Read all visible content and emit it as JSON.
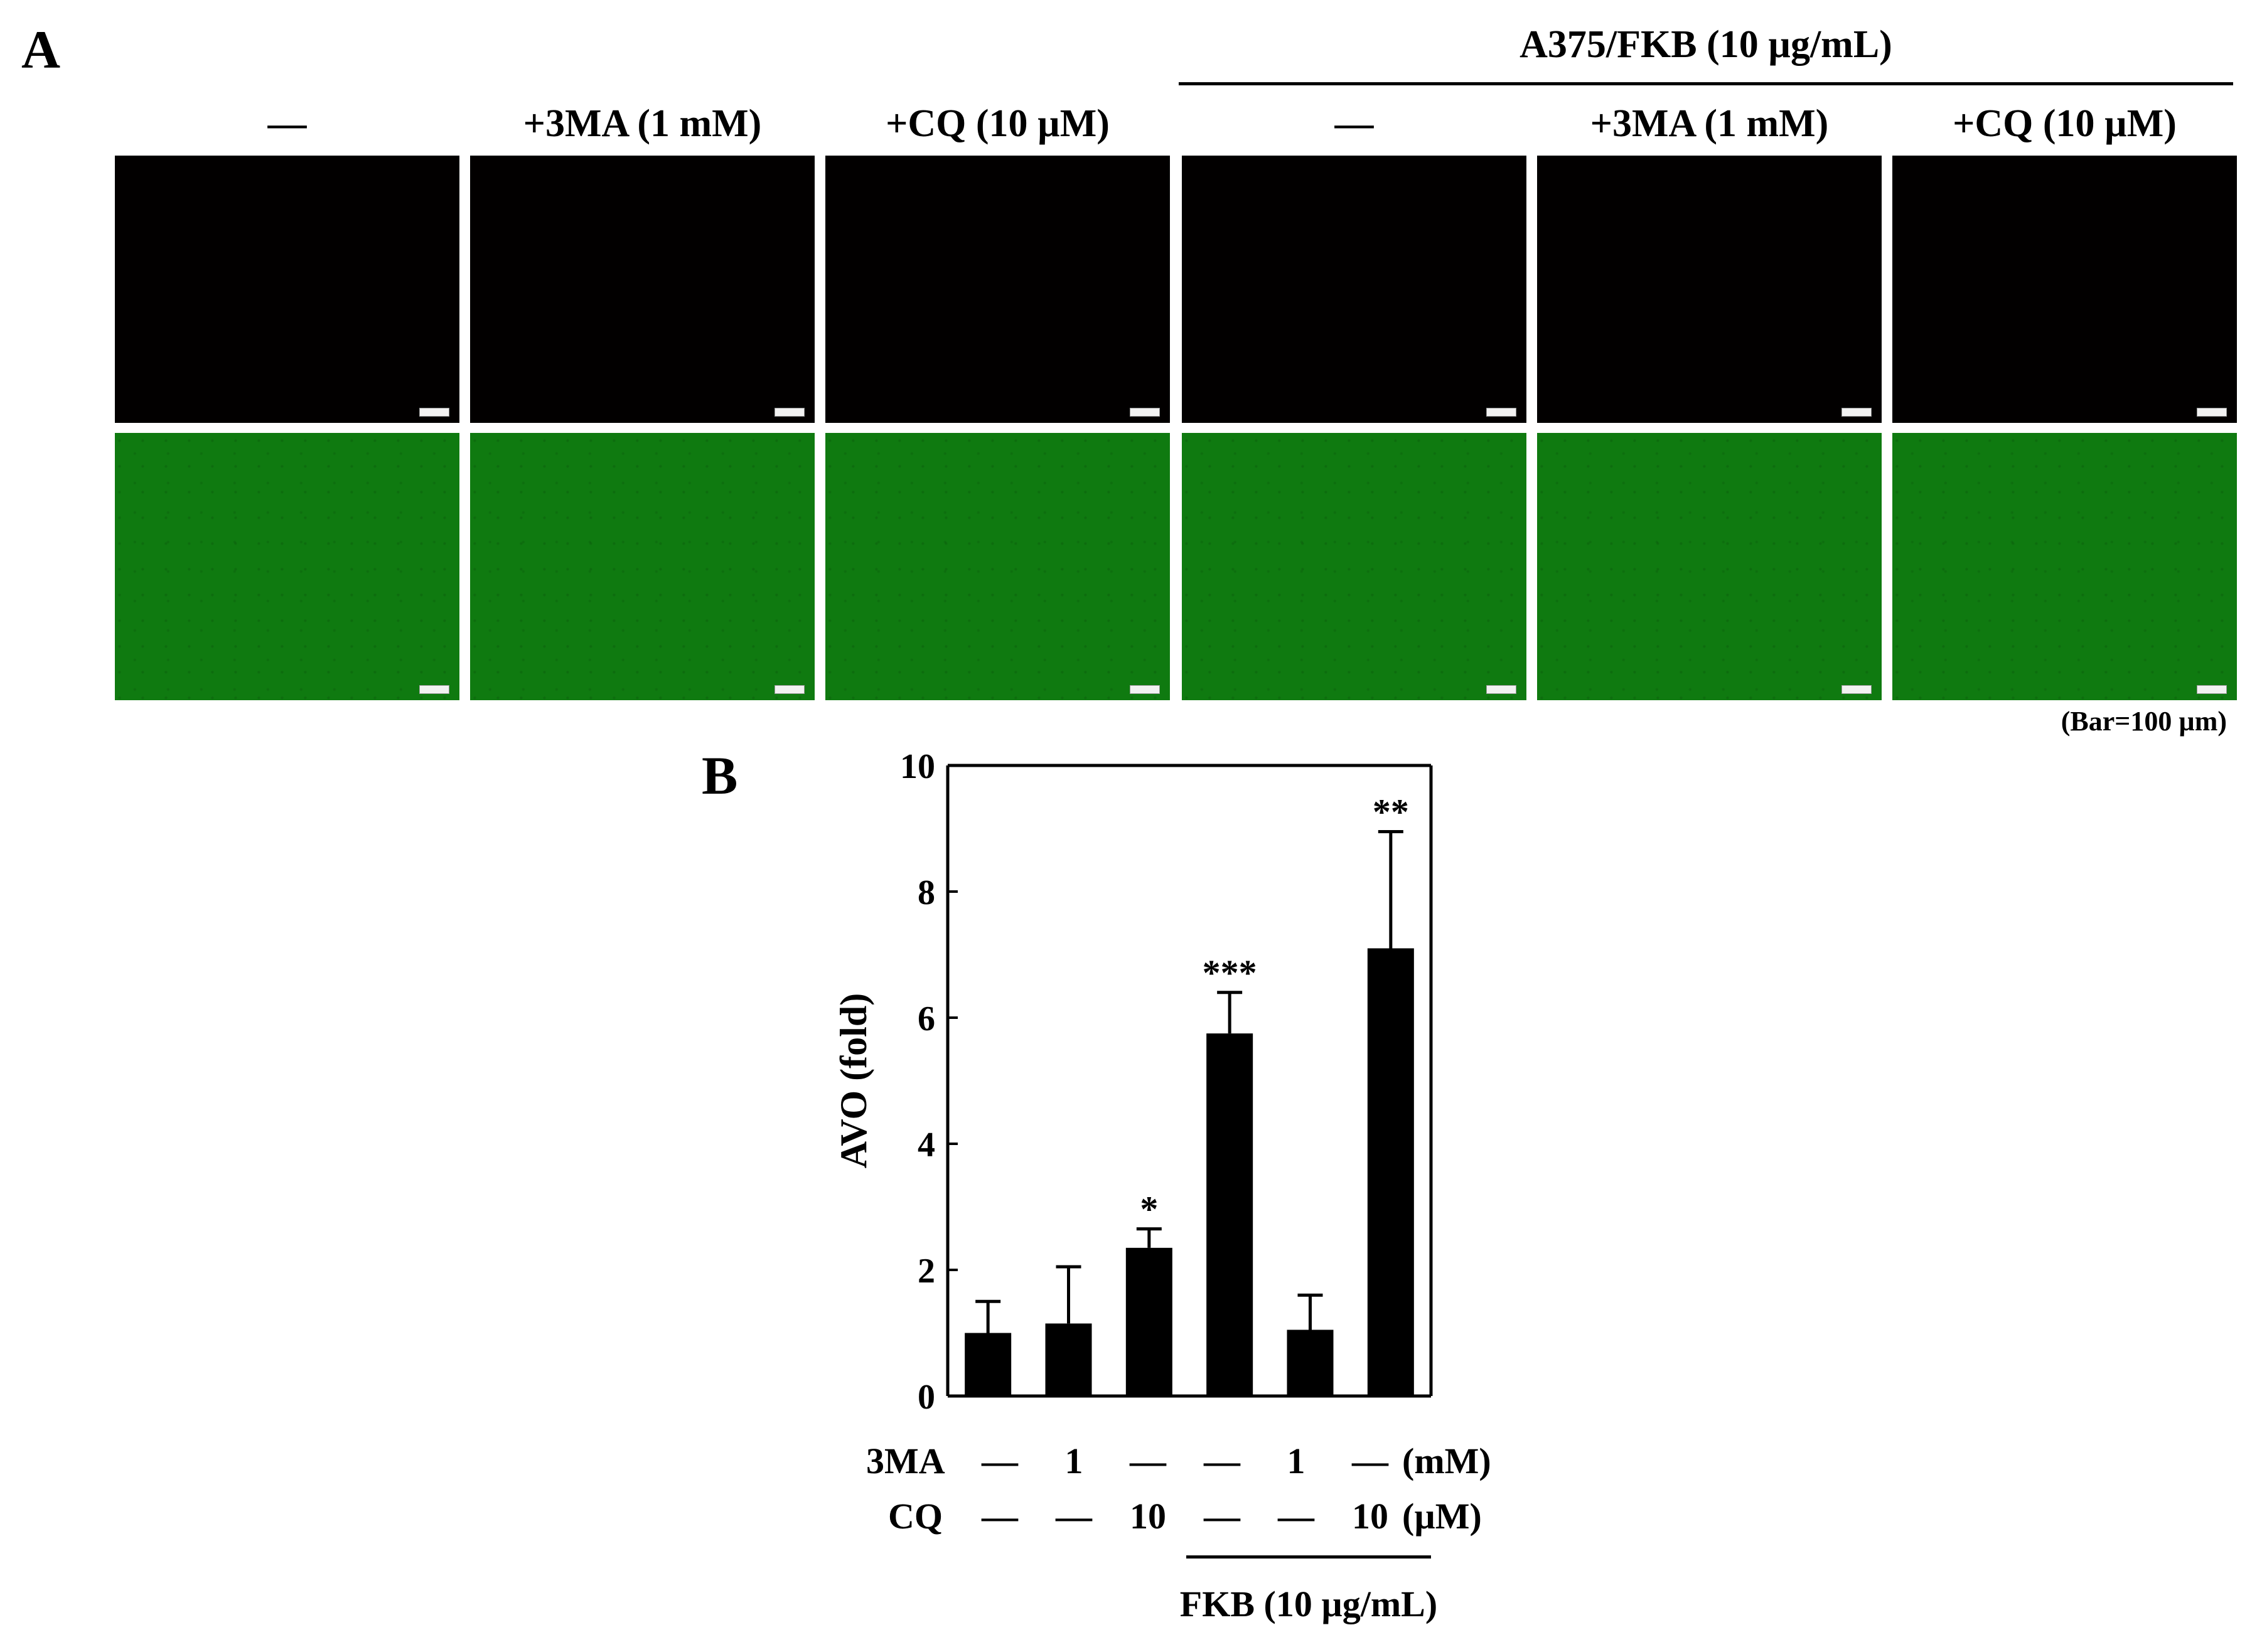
{
  "panel_a": {
    "letter": "A",
    "group_label": "A375/FKB (10 µg/mL)",
    "columns": [
      "—",
      "+3MA (1 mM)",
      "+CQ (10 µM)",
      "—",
      "+3MA (1 mM)",
      "+CQ (10 µM)"
    ],
    "scale_note": "(Bar=100 µm)",
    "row_colors": {
      "fluorescence": "#020000",
      "brightfield": "#0f7a10"
    }
  },
  "panel_b": {
    "letter": "B",
    "condition_rows": [
      {
        "label": "3MA",
        "values": [
          "—",
          "1",
          "—",
          "—",
          "1",
          "—"
        ],
        "unit": "(mM)"
      },
      {
        "label": "CQ",
        "values": [
          "—",
          "—",
          "10",
          "—",
          "—",
          "10"
        ],
        "unit": "(µM)"
      }
    ],
    "group_label": "FKB (10 µg/mL)"
  },
  "chart_data": {
    "type": "bar",
    "categories": [
      "1",
      "2",
      "3",
      "4",
      "5",
      "6"
    ],
    "values": [
      1.0,
      1.15,
      2.35,
      5.75,
      1.05,
      7.1
    ],
    "error": [
      0.5,
      0.9,
      0.3,
      0.65,
      0.55,
      1.85
    ],
    "significance": [
      "",
      "",
      "*",
      "***",
      "",
      "**"
    ],
    "ylabel": "AVO (fold)",
    "ylim": [
      0,
      10
    ],
    "yticks": [
      0,
      2,
      4,
      6,
      8,
      10
    ],
    "bar_color": "#000000"
  }
}
